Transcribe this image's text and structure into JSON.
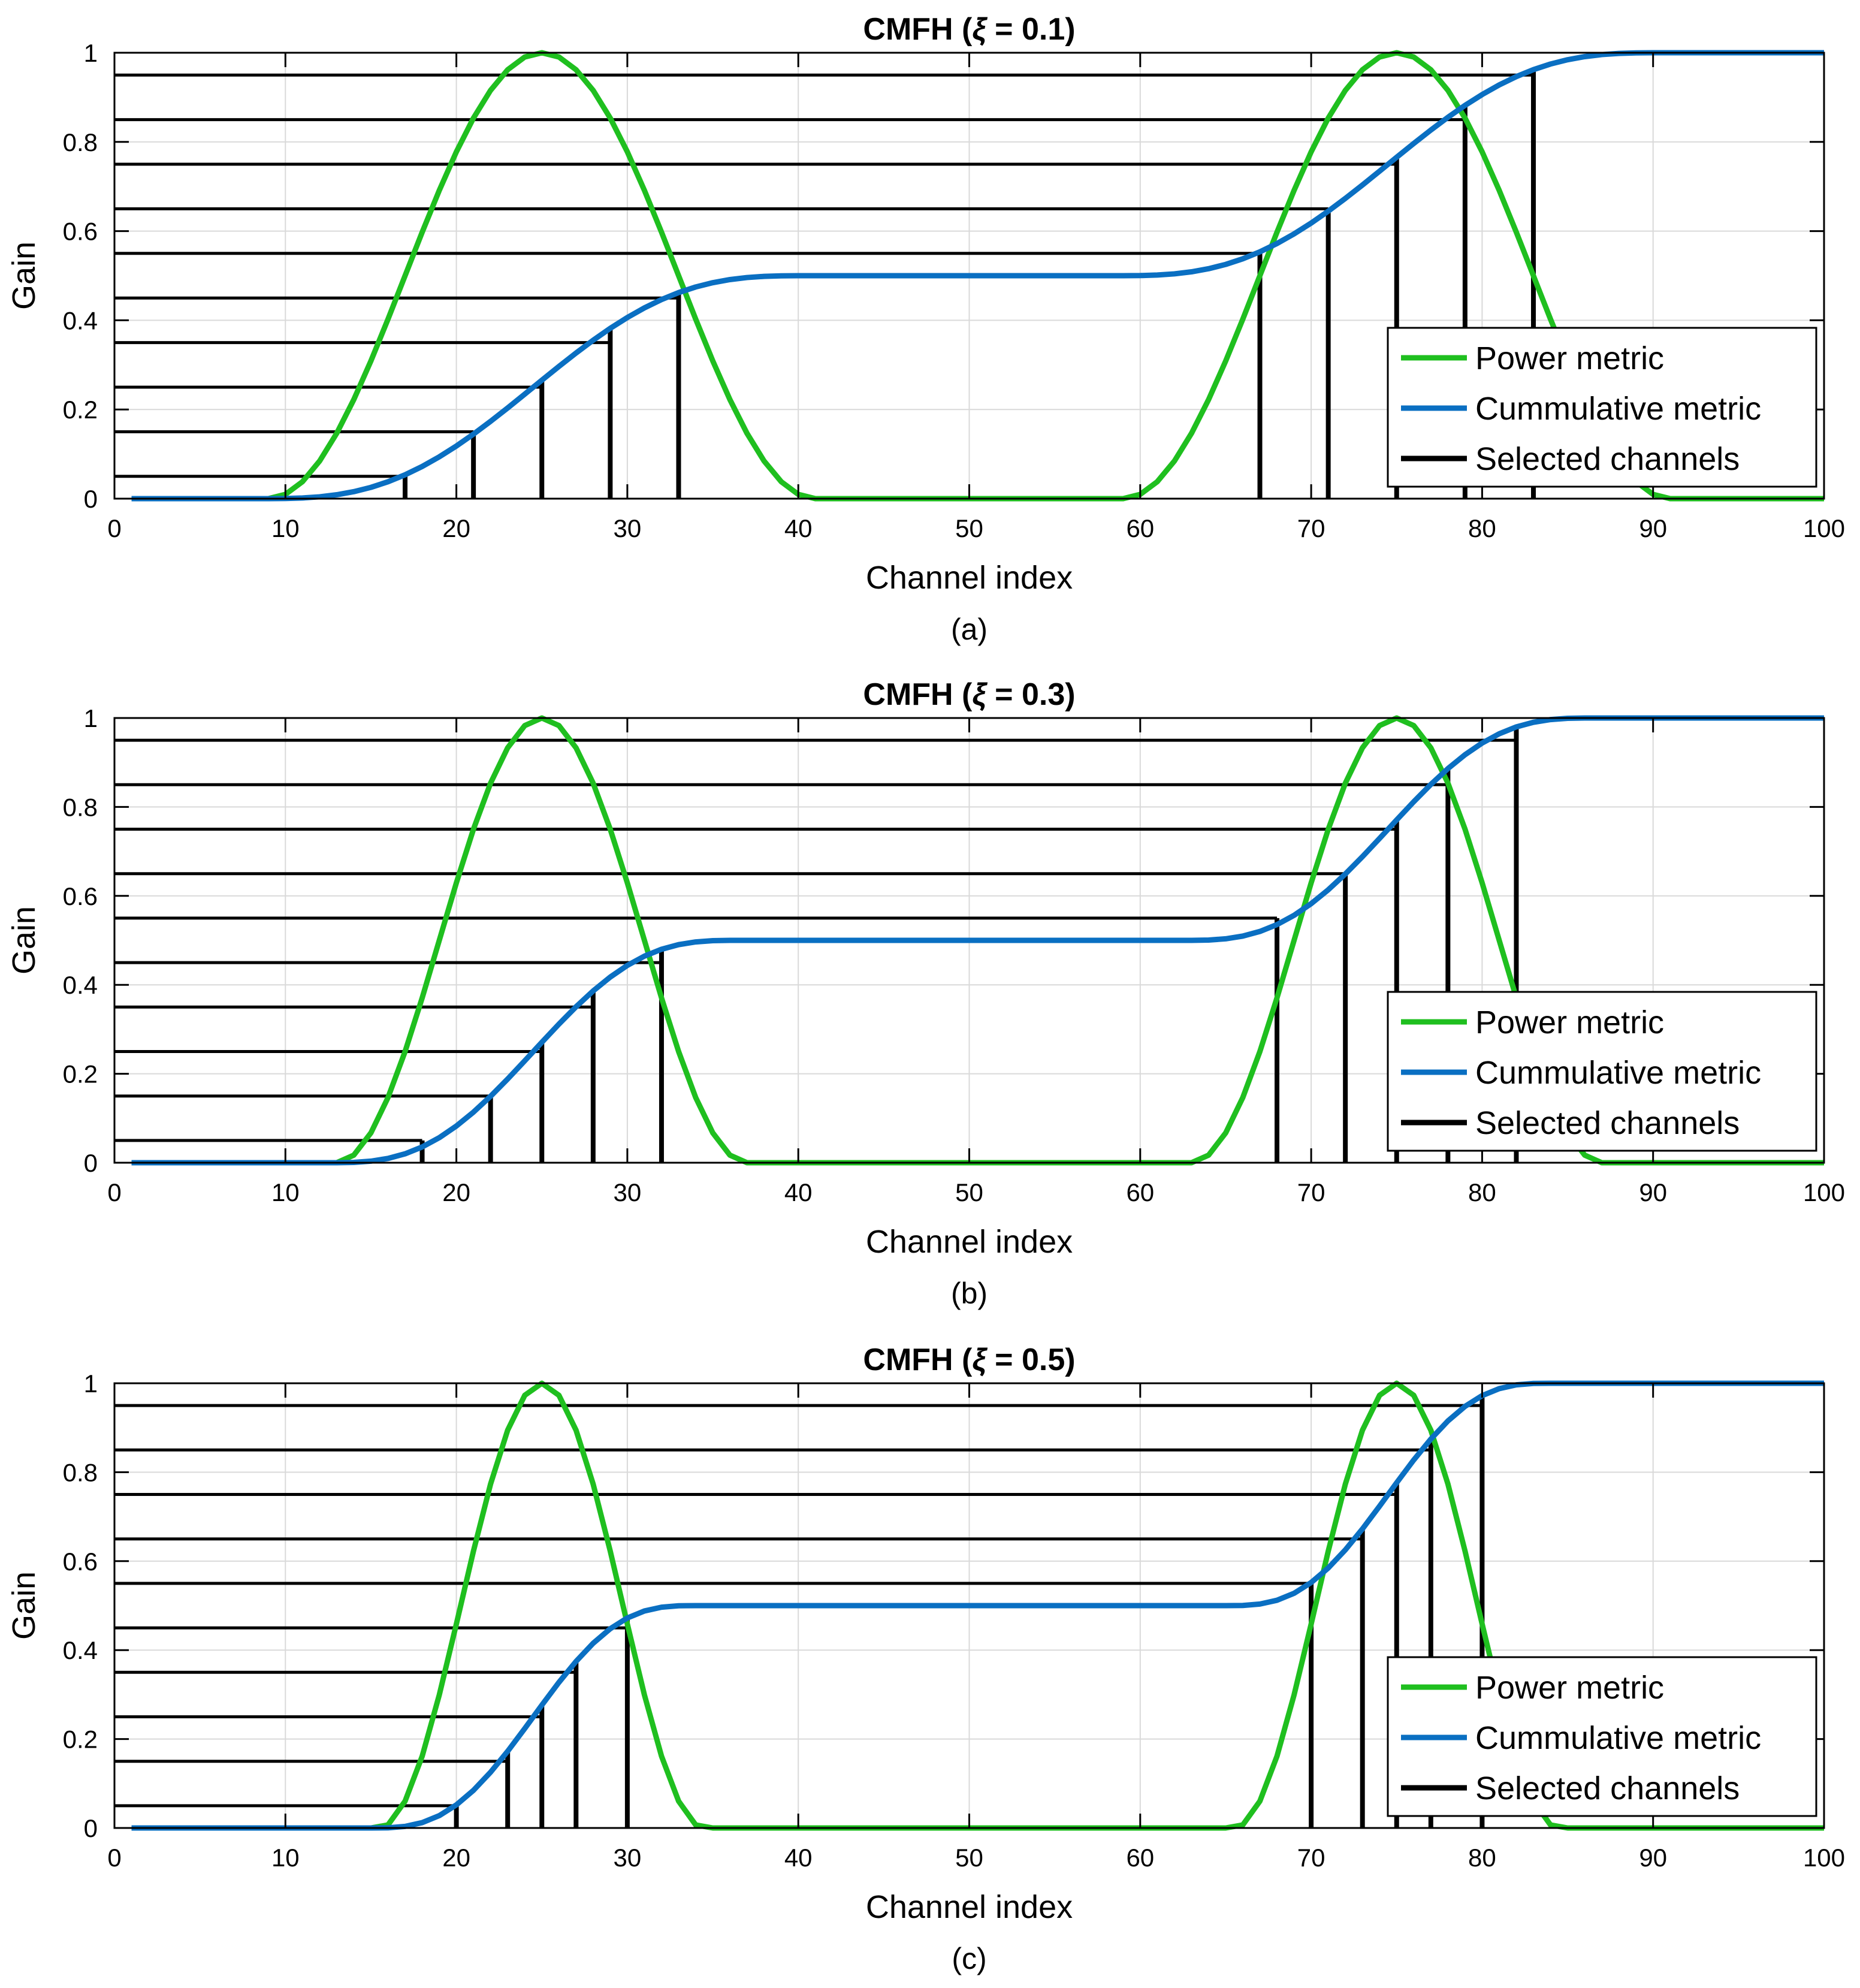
{
  "colors": {
    "power": "#1fbf1f",
    "cumulative": "#0a6fc2",
    "selected": "#000000",
    "grid": "#d9d9d9",
    "axis": "#000000"
  },
  "legend": [
    "Power metric",
    "Cummulative metric",
    "Selected channels"
  ],
  "chart_data": [
    {
      "type": "line",
      "title_prefix": "CMFH (",
      "title_symbol": "ξ",
      "title_suffix": " = 0.1)",
      "xi": 0.1,
      "caption": "(a)",
      "xlabel": "Channel index",
      "ylabel": "Gain",
      "xlim": [
        0,
        100
      ],
      "ylim": [
        0,
        1
      ],
      "xticks": [
        0,
        10,
        20,
        30,
        40,
        50,
        60,
        70,
        80,
        90,
        100
      ],
      "yticks": [
        0,
        0.2,
        0.4,
        0.6,
        0.8,
        1
      ],
      "ytick_labels": [
        "0",
        "0.2",
        "0.4",
        "0.6",
        "0.8",
        "1"
      ],
      "channels": {
        "start": 1,
        "end": 100
      },
      "power_lobes": [
        {
          "center": 25,
          "halfwidth": 16
        },
        {
          "center": 75,
          "halfwidth": 16
        }
      ],
      "thresholds": [
        0.05,
        0.15,
        0.25,
        0.35,
        0.45,
        0.55,
        0.65,
        0.75,
        0.85,
        0.95
      ],
      "selected_channels": [
        17,
        21,
        25,
        29,
        33,
        67,
        71,
        75,
        79,
        83
      ]
    },
    {
      "type": "line",
      "title_prefix": "CMFH (",
      "title_symbol": "ξ",
      "title_suffix": " = 0.3)",
      "xi": 0.3,
      "caption": "(b)",
      "xlabel": "Channel index",
      "ylabel": "Gain",
      "xlim": [
        0,
        100
      ],
      "ylim": [
        0,
        1
      ],
      "xticks": [
        0,
        10,
        20,
        30,
        40,
        50,
        60,
        70,
        80,
        90,
        100
      ],
      "yticks": [
        0,
        0.2,
        0.4,
        0.6,
        0.8,
        1
      ],
      "ytick_labels": [
        "0",
        "0.2",
        "0.4",
        "0.6",
        "0.8",
        "1"
      ],
      "channels": {
        "start": 1,
        "end": 100
      },
      "power_lobes": [
        {
          "center": 25,
          "halfwidth": 12
        },
        {
          "center": 75,
          "halfwidth": 12
        }
      ],
      "thresholds": [
        0.05,
        0.15,
        0.25,
        0.35,
        0.45,
        0.55,
        0.65,
        0.75,
        0.85,
        0.95
      ],
      "selected_channels": [
        18,
        22,
        25,
        28,
        32,
        68,
        72,
        75,
        78,
        82
      ]
    },
    {
      "type": "line",
      "title_prefix": "CMFH (",
      "title_symbol": "ξ",
      "title_suffix": " = 0.5)",
      "xi": 0.5,
      "caption": "(c)",
      "xlabel": "Channel index",
      "ylabel": "Gain",
      "xlim": [
        0,
        100
      ],
      "ylim": [
        0,
        1
      ],
      "xticks": [
        0,
        10,
        20,
        30,
        40,
        50,
        60,
        70,
        80,
        90,
        100
      ],
      "yticks": [
        0,
        0.2,
        0.4,
        0.6,
        0.8,
        1
      ],
      "ytick_labels": [
        "0",
        "0.2",
        "0.4",
        "0.6",
        "0.8",
        "1"
      ],
      "channels": {
        "start": 1,
        "end": 100
      },
      "power_lobes": [
        {
          "center": 25,
          "halfwidth": 9.5
        },
        {
          "center": 75,
          "halfwidth": 9.5
        }
      ],
      "thresholds": [
        0.05,
        0.15,
        0.25,
        0.35,
        0.45,
        0.55,
        0.65,
        0.75,
        0.85,
        0.95
      ],
      "selected_channels": [
        20,
        23,
        25,
        27,
        30,
        70,
        73,
        75,
        77,
        80
      ]
    }
  ]
}
